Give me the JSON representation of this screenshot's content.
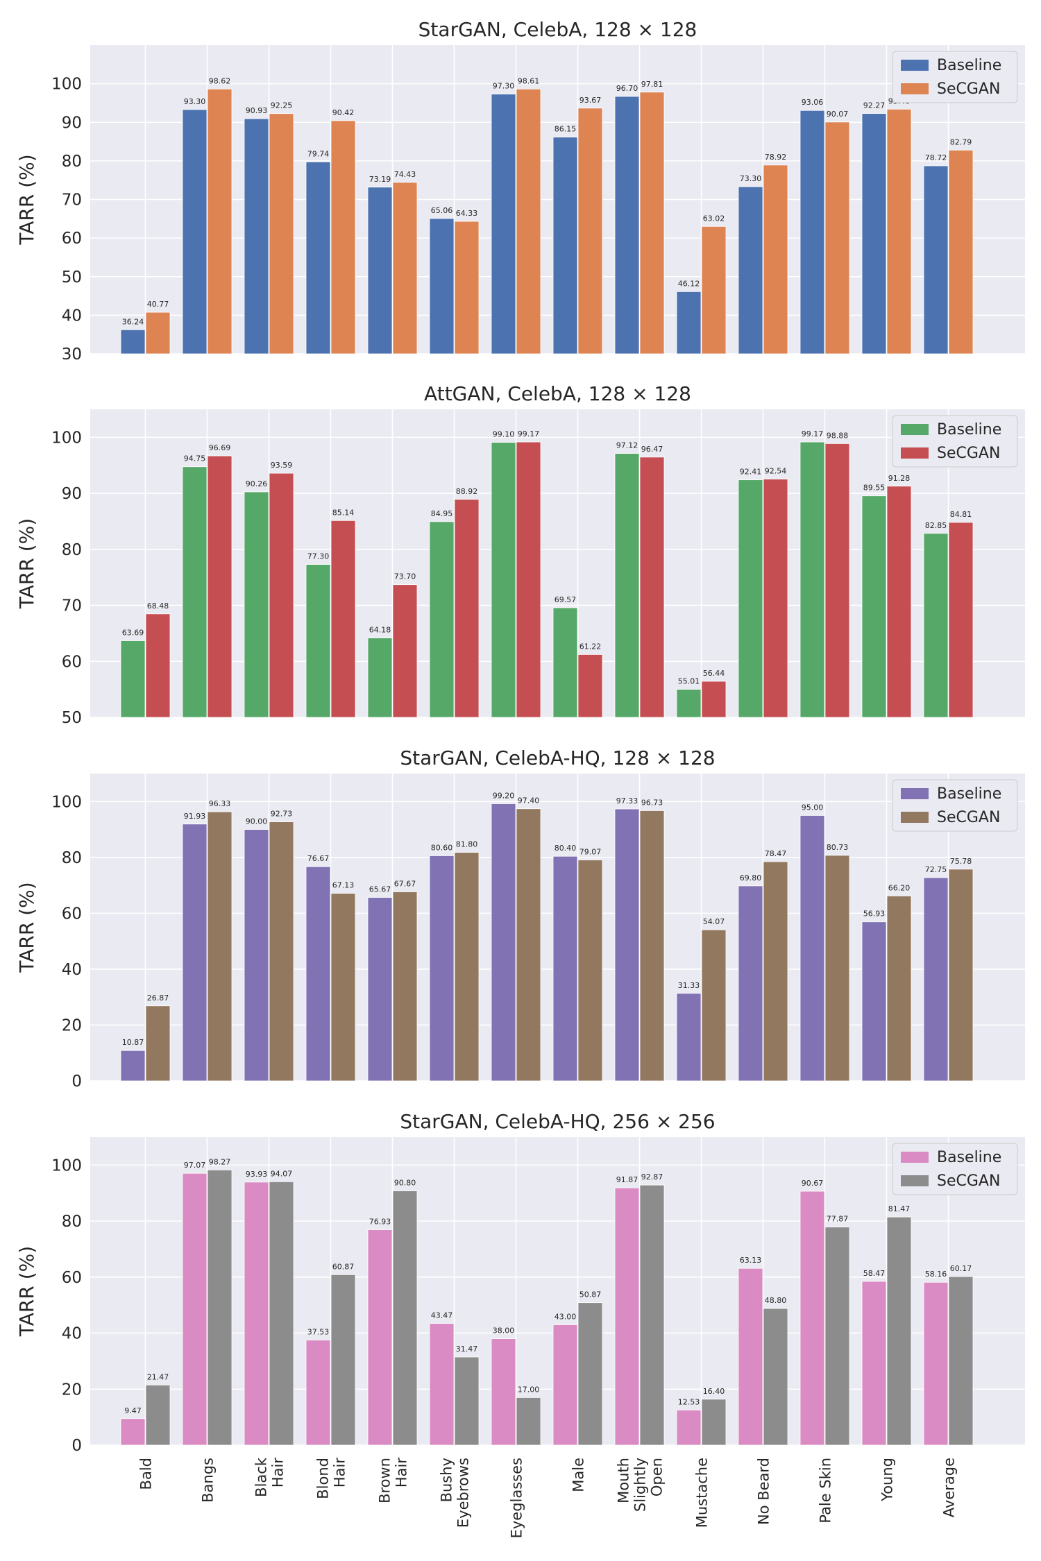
{
  "chart_data": [
    {
      "type": "bar",
      "title": "StarGAN, CelebA, 128 × 128",
      "ylabel": "TARR (%)",
      "ylim": [
        30,
        110
      ],
      "yticks": [
        30,
        40,
        50,
        60,
        70,
        80,
        90,
        100
      ],
      "categories": [
        "Bald",
        "Bangs",
        "Black Hair",
        "Blond Hair",
        "Brown Hair",
        "Bushy Eyebrows",
        "Eyeglasses",
        "Male",
        "Mouth Slightly Open",
        "Mustache",
        "No Beard",
        "Pale Skin",
        "Young",
        "Average"
      ],
      "legend_position": "top-right",
      "grid": true,
      "series": [
        {
          "name": "Baseline",
          "color": "#4c72b0",
          "values": [
            36.24,
            93.3,
            90.93,
            79.74,
            73.19,
            65.06,
            97.3,
            86.15,
            96.7,
            46.12,
            73.3,
            93.06,
            92.27,
            78.72
          ]
        },
        {
          "name": "SeCGAN",
          "color": "#dd8452",
          "values": [
            40.77,
            98.62,
            92.25,
            90.42,
            74.43,
            64.33,
            98.61,
            93.67,
            97.81,
            63.02,
            78.92,
            90.07,
            93.4,
            82.79
          ]
        }
      ]
    },
    {
      "type": "bar",
      "title": "AttGAN, CelebA, 128 × 128",
      "ylabel": "TARR (%)",
      "ylim": [
        50,
        105
      ],
      "yticks": [
        50,
        60,
        70,
        80,
        90,
        100
      ],
      "categories": [
        "Bald",
        "Bangs",
        "Black Hair",
        "Blond Hair",
        "Brown Hair",
        "Bushy Eyebrows",
        "Eyeglasses",
        "Male",
        "Mouth Slightly Open",
        "Mustache",
        "No Beard",
        "Pale Skin",
        "Young",
        "Average"
      ],
      "legend_position": "top-right",
      "grid": true,
      "series": [
        {
          "name": "Baseline",
          "color": "#55a868",
          "values": [
            63.69,
            94.75,
            90.26,
            77.3,
            64.18,
            84.95,
            99.1,
            69.57,
            97.12,
            55.01,
            92.41,
            99.17,
            89.55,
            82.85
          ]
        },
        {
          "name": "SeCGAN",
          "color": "#c44e52",
          "values": [
            68.48,
            96.69,
            93.59,
            85.14,
            73.7,
            88.92,
            99.17,
            61.22,
            96.47,
            56.44,
            92.54,
            98.88,
            91.28,
            84.81
          ]
        }
      ]
    },
    {
      "type": "bar",
      "title": "StarGAN, CelebA-HQ, 128 × 128",
      "ylabel": "TARR (%)",
      "ylim": [
        0,
        110
      ],
      "yticks": [
        0,
        20,
        40,
        60,
        80,
        100
      ],
      "categories": [
        "Bald",
        "Bangs",
        "Black Hair",
        "Blond Hair",
        "Brown Hair",
        "Bushy Eyebrows",
        "Eyeglasses",
        "Male",
        "Mouth Slightly Open",
        "Mustache",
        "No Beard",
        "Pale Skin",
        "Young",
        "Average"
      ],
      "legend_position": "top-right",
      "grid": true,
      "series": [
        {
          "name": "Baseline",
          "color": "#8172b3",
          "values": [
            10.87,
            91.93,
            90.0,
            76.67,
            65.67,
            80.6,
            99.2,
            80.4,
            97.33,
            31.33,
            69.8,
            95.0,
            56.93,
            72.75
          ]
        },
        {
          "name": "SeCGAN",
          "color": "#937860",
          "values": [
            26.87,
            96.33,
            92.73,
            67.13,
            67.67,
            81.8,
            97.4,
            79.07,
            96.73,
            54.07,
            78.47,
            80.73,
            66.2,
            75.78
          ]
        }
      ]
    },
    {
      "type": "bar",
      "title": "StarGAN, CelebA-HQ, 256 × 256",
      "ylabel": "TARR (%)",
      "ylim": [
        0,
        110
      ],
      "yticks": [
        0,
        20,
        40,
        60,
        80,
        100
      ],
      "categories": [
        "Bald",
        "Bangs",
        "Black Hair",
        "Blond Hair",
        "Brown Hair",
        "Bushy Eyebrows",
        "Eyeglasses",
        "Male",
        "Mouth Slightly Open",
        "Mustache",
        "No Beard",
        "Pale Skin",
        "Young",
        "Average"
      ],
      "tick_labels": [
        [
          "Bald"
        ],
        [
          "Bangs"
        ],
        [
          "Black",
          "Hair"
        ],
        [
          "Blond",
          "Hair"
        ],
        [
          "Brown",
          "Hair"
        ],
        [
          "Bushy",
          "Eyebrows"
        ],
        [
          "Eyeglasses"
        ],
        [
          "Male"
        ],
        [
          "Mouth",
          "Slightly",
          "Open"
        ],
        [
          "Mustache"
        ],
        [
          "No Beard"
        ],
        [
          "Pale Skin"
        ],
        [
          "Young"
        ],
        [
          "Average"
        ]
      ],
      "legend_position": "top-right",
      "grid": true,
      "series": [
        {
          "name": "Baseline",
          "color": "#da8bc3",
          "values": [
            9.47,
            97.07,
            93.93,
            37.53,
            76.93,
            43.47,
            38.0,
            43.0,
            91.87,
            12.53,
            63.13,
            90.67,
            58.47,
            58.16
          ]
        },
        {
          "name": "SeCGAN",
          "color": "#8c8c8c",
          "values": [
            21.47,
            98.27,
            94.07,
            60.87,
            90.8,
            31.47,
            17.0,
            50.87,
            92.87,
            16.4,
            48.8,
            77.87,
            81.47,
            60.17
          ]
        }
      ]
    }
  ]
}
